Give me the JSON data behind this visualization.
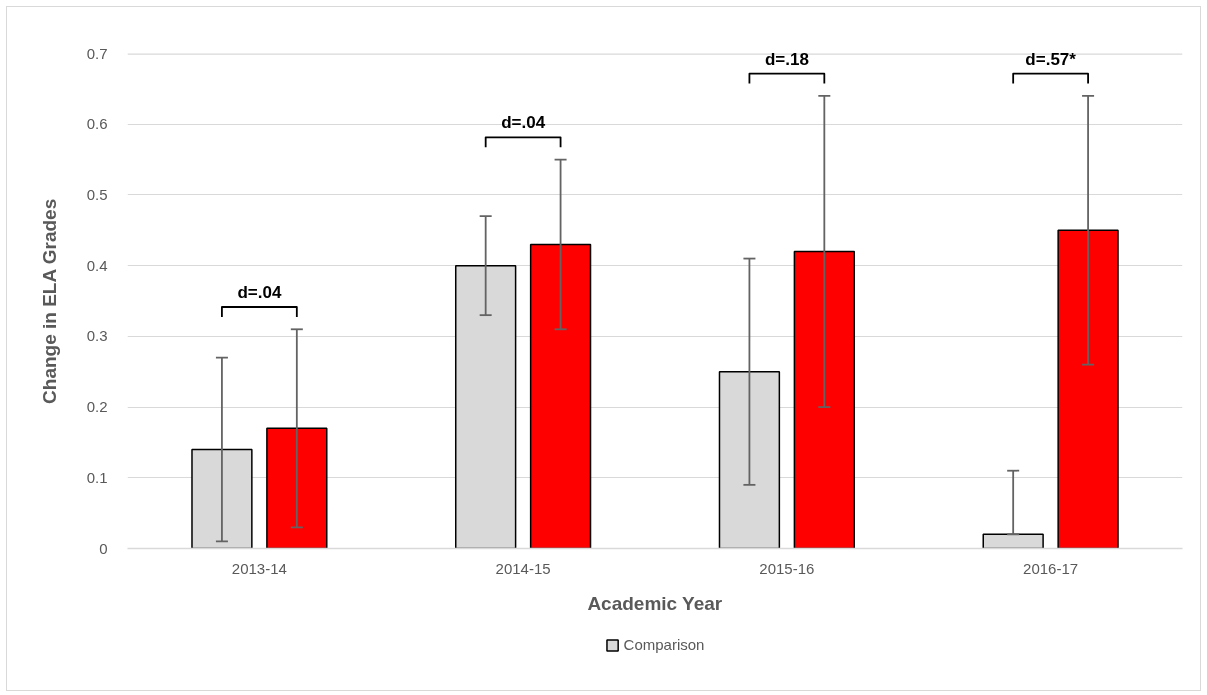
{
  "chart_data": {
    "type": "bar",
    "xlabel": "Academic Year",
    "ylabel": "Change in ELA Grades",
    "categories": [
      "2013-14",
      "2014-15",
      "2015-16",
      "2016-17"
    ],
    "series": [
      {
        "name": "Comparison",
        "color": "#d9d9d9",
        "values": [
          0.14,
          0.4,
          0.25,
          0.02
        ],
        "errors": [
          [
            0.01,
            0.27
          ],
          [
            0.33,
            0.47
          ],
          [
            0.09,
            0.41
          ],
          [
            0.02,
            0.11
          ]
        ]
      },
      {
        "color": "#ff0000",
        "values": [
          0.17,
          0.43,
          0.42,
          0.45
        ],
        "errors": [
          [
            0.03,
            0.31
          ],
          [
            0.31,
            0.55
          ],
          [
            0.2,
            0.64
          ],
          [
            0.26,
            0.64
          ]
        ]
      }
    ],
    "ylim": [
      0,
      0.7
    ],
    "yticks": [
      0,
      0.1,
      0.2,
      0.3,
      0.4,
      0.5,
      0.6,
      0.7
    ],
    "grid": "y",
    "legend": "bottom",
    "annotations": [
      "d=.04",
      "d=.04",
      "d=.18",
      "d=.57*"
    ]
  }
}
